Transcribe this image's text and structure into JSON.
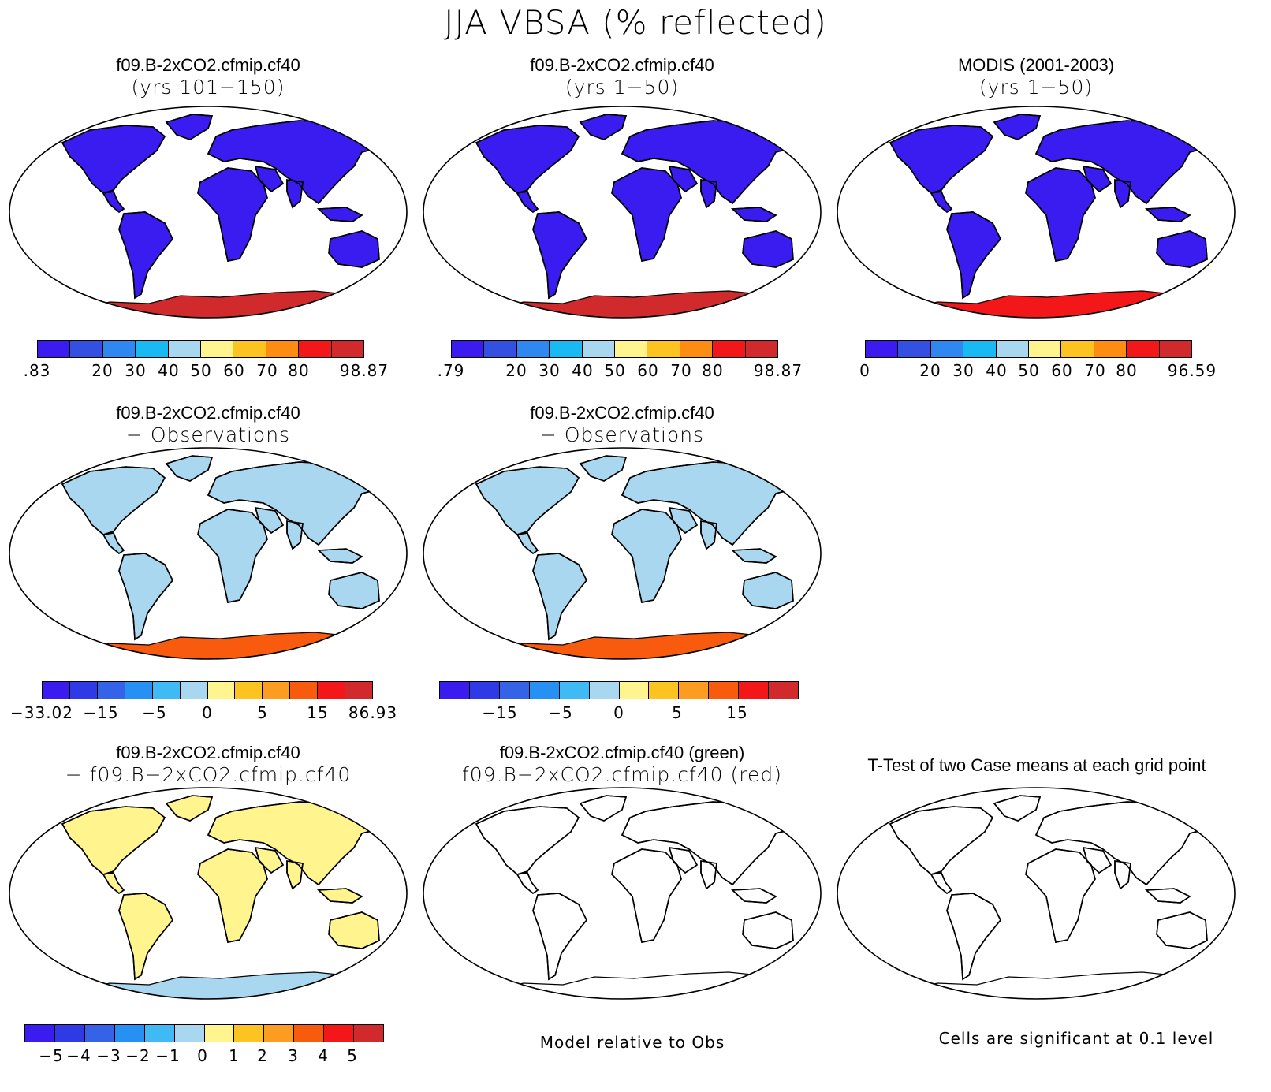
{
  "figure_title": "JJA VBSA (% reflected)",
  "colors": {
    "scale": [
      "#3a1cf0",
      "#3450e0",
      "#2f88f0",
      "#19baf2",
      "#a8d7ef",
      "#fff48e",
      "#fcc321",
      "#fc8c12",
      "#f3171a",
      "#d02a2c"
    ],
    "diff_scale": [
      "#3a1cf0",
      "#2f3ae6",
      "#3563e8",
      "#2791f3",
      "#3fbaf5",
      "#a8d7ef",
      "#fff48e",
      "#fcc321",
      "#fc9c20",
      "#f85a0e",
      "#f3171a",
      "#d02a2c"
    ],
    "ocean": "#ffffff",
    "significance_red": "#ee1111",
    "significance_green": "#22ee22"
  },
  "panels": [
    {
      "id": "case1",
      "title": "f09.B-2xCO2.cfmip.cf40",
      "subtitle": "(yrs 101−150)",
      "field": "land albedo",
      "land_color": "#3a1cf0",
      "polar_color": "#d02a2c",
      "colorbar": {
        "ticks": [
          ".83",
          "20",
          "30",
          "40",
          "50",
          "60",
          "70",
          "80",
          "98.87"
        ]
      }
    },
    {
      "id": "case2",
      "title": "f09.B-2xCO2.cfmip.cf40",
      "subtitle": "(yrs 1−50)",
      "field": "land albedo",
      "land_color": "#3a1cf0",
      "polar_color": "#d02a2c",
      "colorbar": {
        "ticks": [
          ".79",
          "20",
          "30",
          "40",
          "50",
          "60",
          "70",
          "80",
          "98.87"
        ]
      }
    },
    {
      "id": "obs",
      "title": "MODIS (2001-2003)",
      "subtitle": "(yrs 1−50)",
      "field": "land albedo",
      "land_color": "#3a1cf0",
      "polar_color": "#f3171a",
      "colorbar": {
        "ticks": [
          "0",
          "20",
          "30",
          "40",
          "50",
          "60",
          "70",
          "80",
          "96.59"
        ]
      }
    },
    {
      "id": "diff1",
      "title": "f09.B-2xCO2.cfmip.cf40",
      "subtitle": "− Observations",
      "field": "model minus obs",
      "land_color": "#a8d7ef",
      "polar_color": "#f85a0e",
      "colorbar": {
        "ticks": [
          "−33.02",
          "−15",
          "−5",
          "0",
          "5",
          "15",
          "86.93"
        ]
      }
    },
    {
      "id": "diff2",
      "title": "f09.B-2xCO2.cfmip.cf40",
      "subtitle": "− Observations",
      "field": "model minus obs",
      "land_color": "#a8d7ef",
      "polar_color": "#f85a0e",
      "colorbar": {
        "ticks": [
          "−15",
          "−5",
          "0",
          "5",
          "15"
        ]
      }
    },
    {
      "id": "diff3",
      "title": "f09.B-2xCO2.cfmip.cf40",
      "subtitle": "− f09.B−2xCO2.cfmip.cf40",
      "field": "case difference",
      "land_color": "#fff48e",
      "polar_color": "#a8d7ef",
      "colorbar": {
        "ticks": [
          "−5",
          "−4",
          "−3",
          "−2",
          "−1",
          "0",
          "1",
          "2",
          "3",
          "4",
          "5"
        ]
      }
    },
    {
      "id": "rel",
      "title": "f09.B-2xCO2.cfmip.cf40 (green)",
      "subtitle": "f09.B−2xCO2.cfmip.cf40 (red)",
      "field": "model relative to obs",
      "note": "Model relative to Obs"
    },
    {
      "id": "ttest",
      "title": "T-Test of two Case means at each grid point",
      "field": "significance",
      "note": "Cells are significant at 0.1 level"
    }
  ]
}
